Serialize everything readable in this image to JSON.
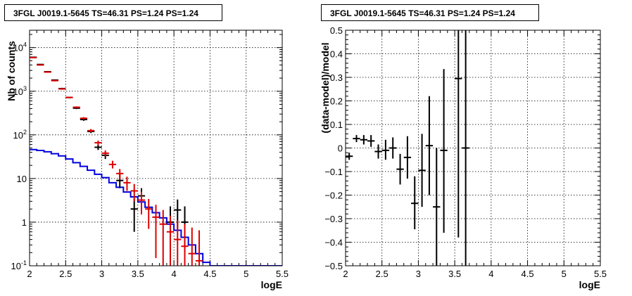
{
  "chart_data": [
    {
      "type": "scatter",
      "title": "3FGL J0019.1-5645 TS=46.31 PS=1.24 PS=1.24",
      "xlabel": "logE",
      "ylabel": "Nb of counts",
      "xlim": [
        2,
        5.5
      ],
      "ylim": [
        0.1,
        25000
      ],
      "yscale": "log",
      "grid": true,
      "x_ticks": [
        "2",
        "2.5",
        "3",
        "3.5",
        "4",
        "4.5",
        "5",
        "5.5"
      ],
      "y_ticks": [
        {
          "value": 0.1,
          "label": "10",
          "sup": "-1"
        },
        {
          "value": 1,
          "label": "1",
          "sup": ""
        },
        {
          "value": 10,
          "label": "10",
          "sup": ""
        },
        {
          "value": 100,
          "label": "10",
          "sup": "2"
        },
        {
          "value": 1000,
          "label": "10",
          "sup": "3"
        },
        {
          "value": 10000,
          "label": "10",
          "sup": "4"
        }
      ],
      "colors": {
        "data": "#000000",
        "model": "#dd0000",
        "background": "#0000dd"
      },
      "series": [
        {
          "role": "data",
          "points": [
            {
              "x": 2.05,
              "y": 6000,
              "lo": 5850,
              "hi": 6150
            },
            {
              "x": 2.15,
              "y": 4100,
              "lo": 3980,
              "hi": 4230
            },
            {
              "x": 2.25,
              "y": 2800,
              "lo": 2700,
              "hi": 2900
            },
            {
              "x": 2.35,
              "y": 1800,
              "lo": 1730,
              "hi": 1870
            },
            {
              "x": 2.45,
              "y": 1150,
              "lo": 1100,
              "hi": 1200
            },
            {
              "x": 2.55,
              "y": 720,
              "lo": 690,
              "hi": 750
            },
            {
              "x": 2.65,
              "y": 410,
              "lo": 390,
              "hi": 430
            },
            {
              "x": 2.75,
              "y": 225,
              "lo": 210,
              "hi": 240
            },
            {
              "x": 2.85,
              "y": 120,
              "lo": 110,
              "hi": 131
            },
            {
              "x": 2.95,
              "y": 52,
              "lo": 45,
              "hi": 60
            },
            {
              "x": 3.05,
              "y": 34,
              "lo": 28,
              "hi": 40
            },
            {
              "x": 3.25,
              "y": 9,
              "lo": 6,
              "hi": 12.5
            },
            {
              "x": 3.45,
              "y": 2,
              "lo": 0.6,
              "hi": 3.5
            },
            {
              "x": 3.55,
              "y": 4,
              "lo": 2,
              "hi": 6
            },
            {
              "x": 3.95,
              "y": 1,
              "lo": 0.2,
              "hi": 2.3
            },
            {
              "x": 4.05,
              "y": 1.9,
              "lo": 0.7,
              "hi": 3.3
            },
            {
              "x": 4.15,
              "y": 1,
              "lo": 0.2,
              "hi": 2.3
            }
          ]
        },
        {
          "role": "model",
          "points": [
            {
              "x": 2.05,
              "y": 5900,
              "lo": 5750,
              "hi": 6050
            },
            {
              "x": 2.15,
              "y": 4000,
              "lo": 3880,
              "hi": 4120
            },
            {
              "x": 2.25,
              "y": 2750,
              "lo": 2650,
              "hi": 2850
            },
            {
              "x": 2.35,
              "y": 1750,
              "lo": 1680,
              "hi": 1820
            },
            {
              "x": 2.45,
              "y": 1130,
              "lo": 1080,
              "hi": 1180
            },
            {
              "x": 2.55,
              "y": 720,
              "lo": 690,
              "hi": 750
            },
            {
              "x": 2.65,
              "y": 430,
              "lo": 410,
              "hi": 450
            },
            {
              "x": 2.75,
              "y": 240,
              "lo": 225,
              "hi": 255
            },
            {
              "x": 2.85,
              "y": 125,
              "lo": 115,
              "hi": 136
            },
            {
              "x": 2.95,
              "y": 66,
              "lo": 58,
              "hi": 74
            },
            {
              "x": 3.05,
              "y": 38,
              "lo": 32,
              "hi": 44
            },
            {
              "x": 3.15,
              "y": 21,
              "lo": 17,
              "hi": 25.5
            },
            {
              "x": 3.25,
              "y": 13,
              "lo": 9.5,
              "hi": 16.5
            },
            {
              "x": 3.35,
              "y": 8,
              "lo": 5.2,
              "hi": 11
            },
            {
              "x": 3.45,
              "y": 5.2,
              "lo": 3,
              "hi": 7.5
            },
            {
              "x": 3.55,
              "y": 3.2,
              "lo": 1.5,
              "hi": 5
            },
            {
              "x": 3.65,
              "y": 2,
              "lo": 0.7,
              "hi": 3.4
            },
            {
              "x": 3.75,
              "y": 1.3,
              "lo": 0.15,
              "hi": 2.5
            },
            {
              "x": 3.85,
              "y": 0.9,
              "lo": 0.1,
              "hi": 1.9
            },
            {
              "x": 3.95,
              "y": 0.6,
              "lo": 0.1,
              "hi": 1.4
            },
            {
              "x": 4.05,
              "y": 0.4,
              "lo": 0.1,
              "hi": 1.1
            },
            {
              "x": 4.15,
              "y": 0.28,
              "lo": 0.1,
              "hi": 0.9
            },
            {
              "x": 4.25,
              "y": 0.19,
              "lo": 0.1,
              "hi": 0.75
            },
            {
              "x": 4.35,
              "y": 0.13,
              "lo": 0.1,
              "hi": 0.65
            }
          ]
        },
        {
          "role": "background",
          "step": true,
          "bin_width": 0.1,
          "x": [
            2.0,
            2.1,
            2.2,
            2.3,
            2.4,
            2.5,
            2.6,
            2.7,
            2.8,
            2.9,
            3.0,
            3.1,
            3.2,
            3.3,
            3.4,
            3.5,
            3.6,
            3.7,
            3.8,
            3.9,
            4.0,
            4.1,
            4.2,
            4.3,
            4.4,
            4.5,
            4.6,
            4.7,
            4.8,
            4.9,
            5.0,
            5.1,
            5.2,
            5.3,
            5.4
          ],
          "y": [
            46,
            44,
            41,
            37,
            33,
            28,
            23,
            19,
            15.5,
            12.5,
            10.5,
            8,
            6.3,
            4.9,
            3.8,
            2.9,
            2.2,
            1.65,
            1.25,
            0.9,
            0.65,
            0.45,
            0.3,
            0.19,
            0.12,
            0.1,
            0.1,
            0.1,
            0.1,
            0.1,
            0.1,
            0.1,
            0.1,
            0.1,
            0.1
          ]
        }
      ]
    },
    {
      "type": "scatter",
      "title": "3FGL J0019.1-5645 TS=46.31 PS=1.24 PS=1.24",
      "xlabel": "logE",
      "ylabel": "(data-model)/model",
      "xlim": [
        2,
        5.5
      ],
      "ylim": [
        -0.5,
        0.5
      ],
      "grid": true,
      "x_ticks": [
        "2",
        "2.5",
        "3",
        "3.5",
        "4",
        "4.5",
        "5",
        "5.5"
      ],
      "y_ticks": [
        "-0.5",
        "-0.4",
        "-0.3",
        "-0.2",
        "-0.1",
        "0",
        "0.1",
        "0.2",
        "0.3",
        "0.4",
        "0.5"
      ],
      "colors": {
        "data": "#000000"
      },
      "points": [
        {
          "x": 2.05,
          "y": -0.035,
          "lo": -0.05,
          "hi": -0.02
        },
        {
          "x": 2.15,
          "y": 0.04,
          "lo": 0.025,
          "hi": 0.055
        },
        {
          "x": 2.25,
          "y": 0.035,
          "lo": 0.015,
          "hi": 0.055
        },
        {
          "x": 2.35,
          "y": 0.03,
          "lo": 0.005,
          "hi": 0.055
        },
        {
          "x": 2.45,
          "y": -0.015,
          "lo": -0.045,
          "hi": 0.015
        },
        {
          "x": 2.55,
          "y": -0.01,
          "lo": -0.05,
          "hi": 0.035
        },
        {
          "x": 2.65,
          "y": 0.0,
          "lo": -0.045,
          "hi": 0.045
        },
        {
          "x": 2.75,
          "y": -0.09,
          "lo": -0.155,
          "hi": -0.025
        },
        {
          "x": 2.85,
          "y": -0.04,
          "lo": -0.13,
          "hi": 0.05
        },
        {
          "x": 2.95,
          "y": -0.235,
          "lo": -0.345,
          "hi": -0.12
        },
        {
          "x": 3.05,
          "y": -0.095,
          "lo": -0.25,
          "hi": 0.06
        },
        {
          "x": 3.15,
          "y": 0.01,
          "lo": -0.2,
          "hi": 0.22
        },
        {
          "x": 3.25,
          "y": -0.25,
          "lo": -0.5,
          "hi": 0.0
        },
        {
          "x": 3.35,
          "y": -0.01,
          "lo": -0.36,
          "hi": 0.335
        },
        {
          "x": 3.55,
          "y": 0.295,
          "lo": -0.38,
          "hi": 0.5
        },
        {
          "x": 3.65,
          "y": 0.0,
          "lo": -0.5,
          "hi": 0.5
        }
      ]
    }
  ]
}
